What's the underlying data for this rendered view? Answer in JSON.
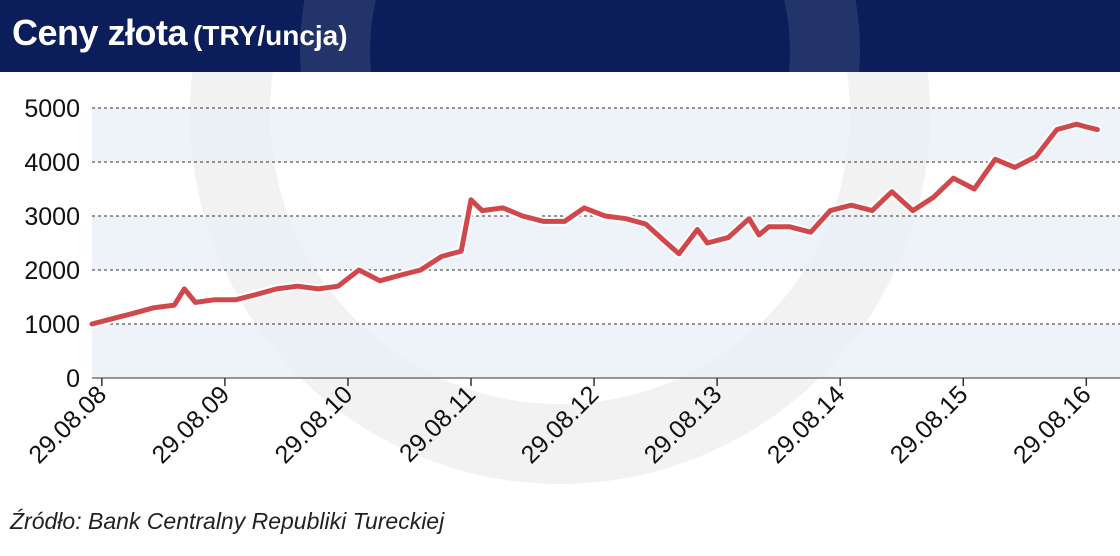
{
  "header": {
    "title": "Ceny złota",
    "unit": "(TRY/uncja)"
  },
  "source": "Źródło: Bank Centralny Republiki Tureckiej",
  "colors": {
    "header_bg": "#0b1d5a",
    "line": "#d0484b",
    "band": "#e8eef7"
  },
  "chart_data": {
    "type": "line",
    "title": "Ceny złota",
    "ylabel": "TRY/uncja",
    "ylim": [
      0,
      5000
    ],
    "yticks": [
      0,
      1000,
      2000,
      3000,
      4000,
      5000
    ],
    "ytick_labels": [
      "0",
      "1000",
      "2000",
      "3000",
      "4000",
      "5000"
    ],
    "xtick_labels": [
      "29.08.08",
      "29.08.09",
      "29.08.10",
      "29.08.11",
      "29.08.12",
      "29.08.13",
      "29.08.14",
      "29.08.15",
      "29.08.16"
    ],
    "x_range": [
      "29.08.08",
      "29.08.16"
    ],
    "grid": true,
    "legend": "none",
    "series": [
      {
        "x": [
          2008.58,
          2008.75,
          2008.92,
          2009.08,
          2009.25,
          2009.33,
          2009.42,
          2009.58,
          2009.75,
          2009.92,
          2010.08,
          2010.25,
          2010.42,
          2010.58,
          2010.75,
          2010.92,
          2011.08,
          2011.25,
          2011.42,
          2011.58,
          2011.66,
          2011.75,
          2011.92,
          2012.08,
          2012.25,
          2012.42,
          2012.58,
          2012.75,
          2012.92,
          2013.08,
          2013.25,
          2013.35,
          2013.5,
          2013.58,
          2013.75,
          2013.92,
          2014.0,
          2014.08,
          2014.25,
          2014.42,
          2014.58,
          2014.75,
          2014.92,
          2015.08,
          2015.25,
          2015.42,
          2015.58,
          2015.75,
          2015.92,
          2016.08,
          2016.25,
          2016.42,
          2016.58,
          2016.66,
          2016.75
        ],
        "y": [
          1000,
          1100,
          1200,
          1300,
          1350,
          1650,
          1400,
          1450,
          1450,
          1550,
          1650,
          1700,
          1650,
          1700,
          2000,
          1800,
          1900,
          2000,
          2250,
          2350,
          3300,
          3100,
          3150,
          3000,
          2900,
          2900,
          3150,
          3000,
          2950,
          2850,
          2500,
          2300,
          2750,
          2500,
          2600,
          2950,
          2650,
          2800,
          2800,
          2700,
          3100,
          3200,
          3100,
          3450,
          3100,
          3350,
          3700,
          3500,
          4050,
          3900,
          4100,
          4600,
          4700,
          4650,
          4600
        ]
      }
    ]
  }
}
